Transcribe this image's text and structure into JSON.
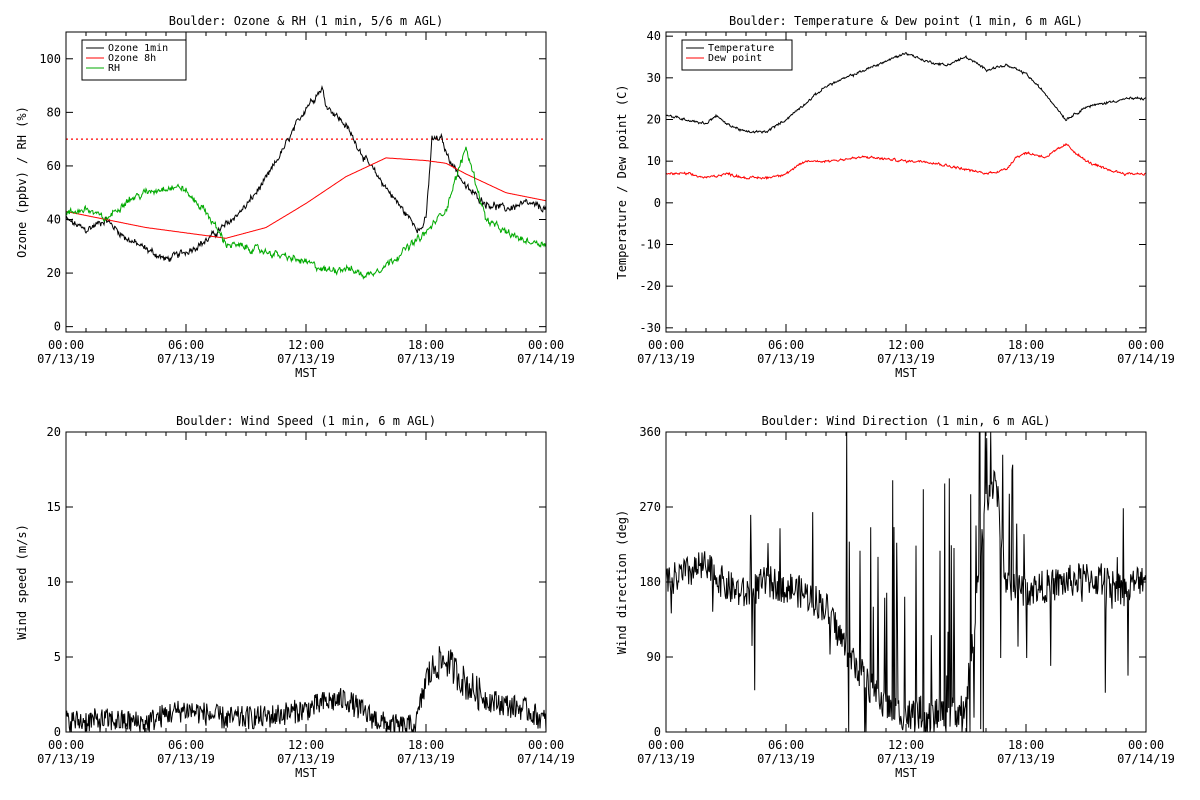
{
  "colors": {
    "black": "#000000",
    "red": "#ff0000",
    "green": "#00aa00",
    "background": "#ffffff"
  },
  "chart_data": [
    {
      "type": "line",
      "title": "Boulder: Ozone & RH (1 min, 5/6 m AGL)",
      "xlabel": "MST",
      "ylabel": "Ozone (ppbv) / RH (%)",
      "xlim": [
        "07/13/19 00:00",
        "07/14/19 00:00"
      ],
      "ylim": [
        -2,
        110
      ],
      "x_ticks": [
        {
          "time": "00:00",
          "date": "07/13/19"
        },
        {
          "time": "06:00",
          "date": "07/13/19"
        },
        {
          "time": "12:00",
          "date": "07/13/19"
        },
        {
          "time": "18:00",
          "date": "07/13/19"
        },
        {
          "time": "00:00",
          "date": "07/14/19"
        }
      ],
      "y_ticks": [
        "0",
        "20",
        "40",
        "60",
        "80",
        "100"
      ],
      "y_tick_values": [
        0,
        20,
        40,
        60,
        80,
        100
      ],
      "reference_line": {
        "y": 70,
        "style": "dotted",
        "color": "#ff0000"
      },
      "legend": {
        "position": "top-left",
        "entries": [
          {
            "label": "Ozone 1min",
            "color": "#000000"
          },
          {
            "label": "Ozone 8h",
            "color": "#ff0000"
          },
          {
            "label": "RH",
            "color": "#00aa00"
          }
        ]
      },
      "noise": 2.2,
      "series": [
        {
          "name": "Ozone 1min",
          "color": "#000000",
          "x_hours": [
            0,
            1,
            2,
            3,
            4,
            5,
            6,
            7,
            8,
            9,
            10,
            11,
            12,
            12.8,
            13,
            14,
            15,
            16,
            17,
            17.7,
            18,
            18.3,
            18.8,
            19,
            20,
            21,
            22,
            23,
            24
          ],
          "values": [
            40,
            36,
            40,
            33,
            29,
            25,
            28,
            32,
            38,
            45,
            55,
            68,
            82,
            89,
            83,
            75,
            62,
            52,
            42,
            36,
            40,
            70,
            70,
            65,
            52,
            46,
            44,
            46,
            44
          ]
        },
        {
          "name": "Ozone 8h",
          "color": "#ff0000",
          "x_hours": [
            0,
            2,
            4,
            6,
            8,
            10,
            12,
            14,
            16,
            18,
            19,
            20,
            22,
            24
          ],
          "values": [
            43,
            40,
            37,
            35,
            33,
            37,
            46,
            56,
            63,
            62,
            61,
            57,
            50,
            47
          ]
        },
        {
          "name": "RH",
          "color": "#00aa00",
          "x_hours": [
            0,
            1,
            2,
            3,
            4,
            5,
            5.8,
            6.3,
            7,
            8,
            10,
            12,
            13,
            14,
            15,
            16,
            17,
            18,
            19,
            19.7,
            20,
            21,
            22,
            23,
            24
          ],
          "values": [
            42,
            44,
            40,
            47,
            50,
            52,
            52,
            48,
            43,
            31,
            28,
            24,
            21,
            22,
            19,
            23,
            29,
            35,
            44,
            60,
            67,
            40,
            35,
            32,
            31
          ]
        }
      ]
    },
    {
      "type": "line",
      "title": "Boulder: Temperature & Dew point (1 min, 6 m AGL)",
      "xlabel": "MST",
      "ylabel": "Temperature / Dew point (C)",
      "xlim": [
        "07/13/19 00:00",
        "07/14/19 00:00"
      ],
      "ylim": [
        -31,
        41
      ],
      "x_ticks": [
        {
          "time": "00:00",
          "date": "07/13/19"
        },
        {
          "time": "06:00",
          "date": "07/13/19"
        },
        {
          "time": "12:00",
          "date": "07/13/19"
        },
        {
          "time": "18:00",
          "date": "07/13/19"
        },
        {
          "time": "00:00",
          "date": "07/14/19"
        }
      ],
      "y_ticks": [
        "-30",
        "-20",
        "-10",
        "0",
        "10",
        "20",
        "30",
        "40"
      ],
      "y_tick_values": [
        -30,
        -20,
        -10,
        0,
        10,
        20,
        30,
        40
      ],
      "legend": {
        "position": "top-left",
        "entries": [
          {
            "label": "Temperature",
            "color": "#000000"
          },
          {
            "label": "Dew point",
            "color": "#ff0000"
          }
        ]
      },
      "noise": 0.5,
      "series": [
        {
          "name": "Temperature",
          "color": "#000000",
          "x_hours": [
            0,
            1,
            2,
            2.5,
            3,
            4,
            5,
            6,
            7,
            8,
            9,
            10,
            11,
            12,
            13,
            14,
            15,
            16,
            17,
            18,
            19,
            20,
            21,
            22,
            23,
            24
          ],
          "values": [
            21,
            20,
            19,
            21,
            19,
            17,
            17,
            20,
            24,
            28,
            30,
            32,
            34,
            36,
            34,
            33,
            35,
            32,
            33,
            31,
            26,
            20,
            23,
            24,
            25,
            25
          ]
        },
        {
          "name": "Dew point",
          "color": "#ff0000",
          "x_hours": [
            0,
            1,
            2,
            3,
            4,
            5,
            6,
            7,
            8,
            10,
            12,
            13,
            14,
            15,
            16,
            17,
            17.5,
            18,
            19,
            20,
            21,
            22,
            23,
            24
          ],
          "values": [
            7,
            7,
            6,
            7,
            6,
            6,
            7,
            10,
            10,
            11,
            10,
            10,
            9,
            8,
            7,
            8,
            11,
            12,
            11,
            14,
            10,
            8,
            7,
            7
          ]
        }
      ]
    },
    {
      "type": "line",
      "title": "Boulder: Wind Speed (1 min, 6 m AGL)",
      "xlabel": "MST",
      "ylabel": "Wind speed (m/s)",
      "xlim": [
        "07/13/19 00:00",
        "07/14/19 00:00"
      ],
      "ylim": [
        0,
        20
      ],
      "x_ticks": [
        {
          "time": "00:00",
          "date": "07/13/19"
        },
        {
          "time": "06:00",
          "date": "07/13/19"
        },
        {
          "time": "12:00",
          "date": "07/13/19"
        },
        {
          "time": "18:00",
          "date": "07/13/19"
        },
        {
          "time": "00:00",
          "date": "07/14/19"
        }
      ],
      "y_ticks": [
        "0",
        "5",
        "10",
        "15",
        "20"
      ],
      "y_tick_values": [
        0,
        5,
        10,
        15,
        20
      ],
      "noise": 0.8,
      "series": [
        {
          "name": "Wind speed",
          "color": "#000000",
          "x_hours": [
            0,
            2,
            4,
            5,
            6,
            8,
            10,
            12,
            13,
            14,
            15,
            16,
            17,
            17.5,
            18,
            18.5,
            19,
            20,
            21,
            22,
            23,
            24
          ],
          "values": [
            0.7,
            0.8,
            0.6,
            1.2,
            1.5,
            0.9,
            1,
            1.5,
            2,
            2.2,
            1.2,
            0.5,
            0.3,
            0.5,
            3.5,
            4.5,
            4.8,
            3.2,
            2.2,
            1.8,
            1.5,
            0.7
          ]
        }
      ]
    },
    {
      "type": "line",
      "title": "Boulder: Wind Direction (1 min, 6 m AGL)",
      "xlabel": "MST",
      "ylabel": "Wind direction (deg)",
      "xlim": [
        "07/13/19 00:00",
        "07/14/19 00:00"
      ],
      "ylim": [
        0,
        360
      ],
      "x_ticks": [
        {
          "time": "00:00",
          "date": "07/13/19"
        },
        {
          "time": "06:00",
          "date": "07/13/19"
        },
        {
          "time": "12:00",
          "date": "07/13/19"
        },
        {
          "time": "18:00",
          "date": "07/13/19"
        },
        {
          "time": "00:00",
          "date": "07/14/19"
        }
      ],
      "y_ticks": [
        "0",
        "90",
        "180",
        "270",
        "360"
      ],
      "y_tick_values": [
        0,
        90,
        180,
        270,
        360
      ],
      "noise": 20,
      "series": [
        {
          "name": "Wind direction",
          "color": "#000000",
          "x_hours": [
            0,
            1,
            2,
            3,
            4,
            5,
            6,
            7,
            8,
            9,
            10,
            11,
            12,
            13,
            14,
            15,
            16,
            16.5,
            17,
            18,
            19,
            20,
            21,
            22,
            23,
            24
          ],
          "values": [
            180,
            190,
            200,
            175,
            165,
            180,
            175,
            165,
            150,
            100,
            60,
            30,
            20,
            25,
            20,
            30,
            280,
            300,
            180,
            170,
            175,
            180,
            185,
            180,
            170,
            190
          ]
        }
      ]
    }
  ]
}
